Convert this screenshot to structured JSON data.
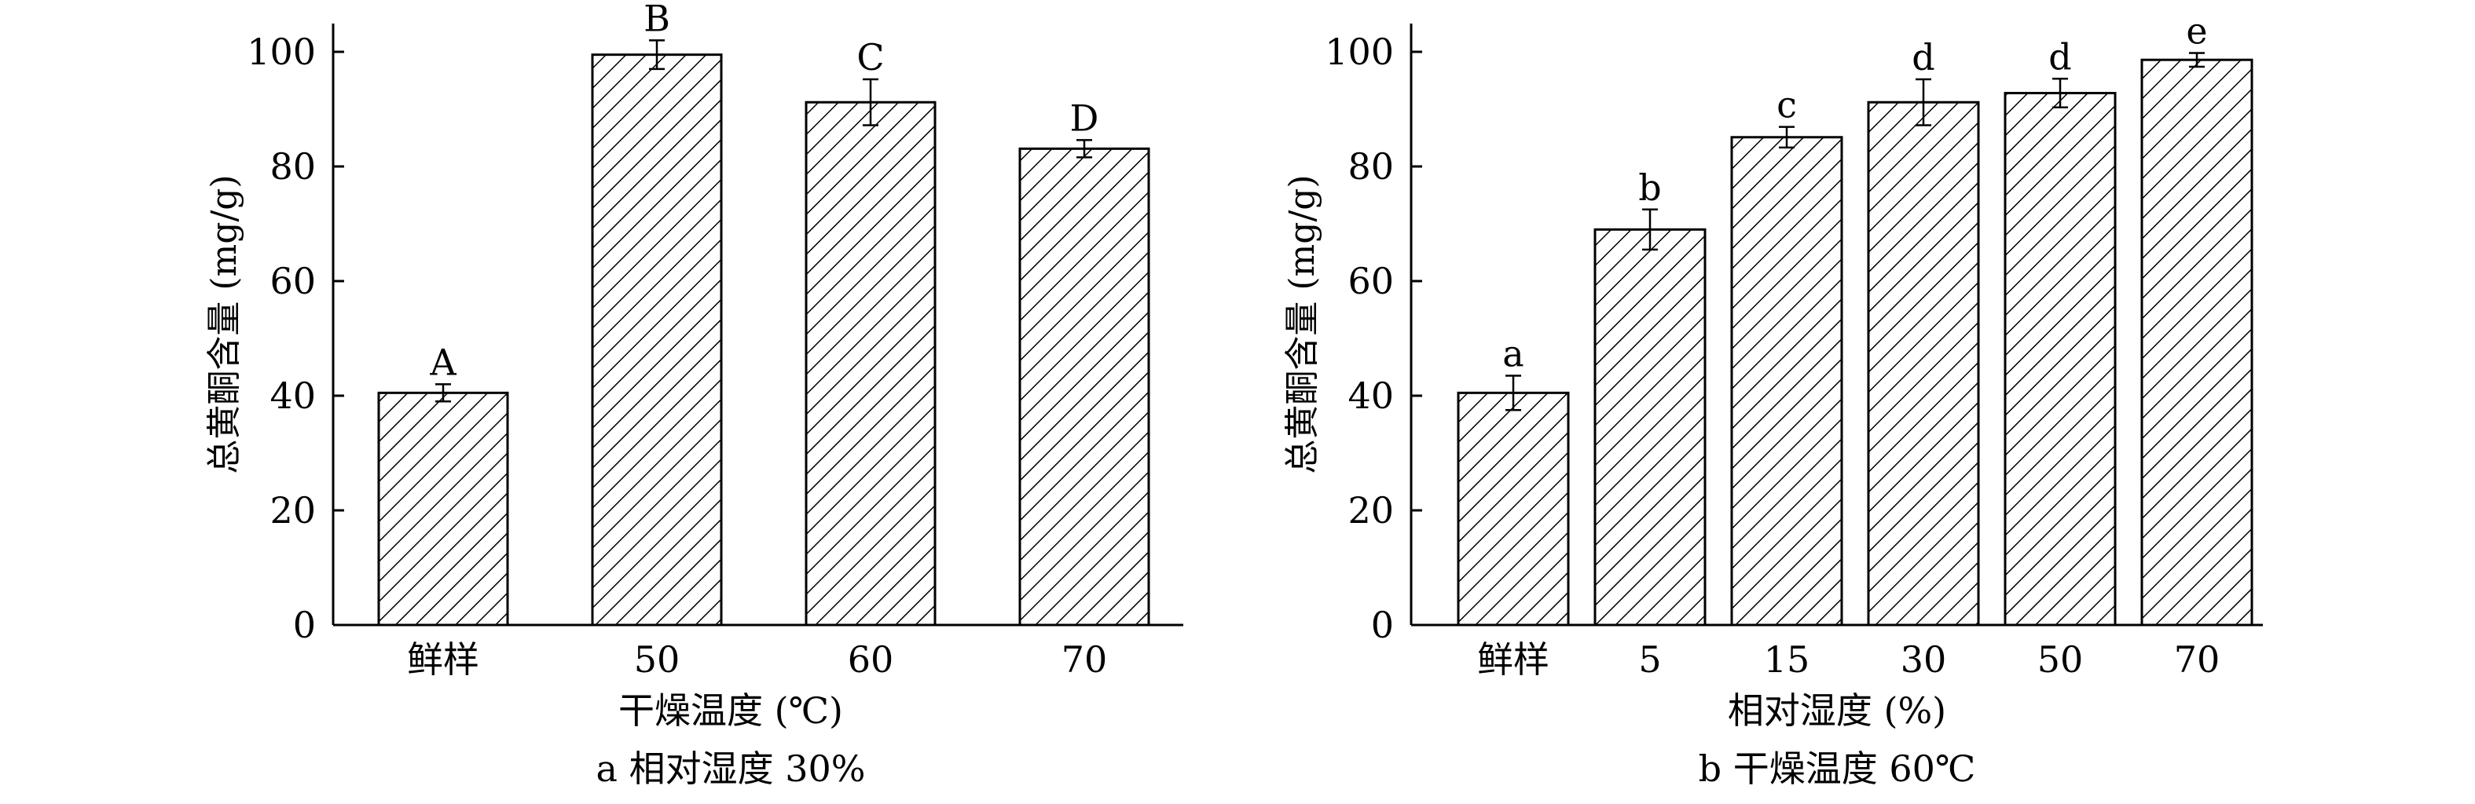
{
  "chart_data": [
    {
      "type": "bar",
      "caption": "a 相对湿度 30%",
      "xlabel": "干燥温度 (℃)",
      "ylabel": "总黄酮含量 (mg/g)",
      "ylim": [
        0,
        100
      ],
      "yticks": [
        "0",
        "20",
        "40",
        "60",
        "80",
        "100"
      ],
      "categories": [
        "鲜样",
        "50",
        "60",
        "70"
      ],
      "values": [
        40.5,
        99.5,
        91.2,
        83.1
      ],
      "errors": [
        1.5,
        2.5,
        4.0,
        1.5
      ],
      "letters": [
        "A",
        "B",
        "C",
        "D"
      ],
      "bar_fill": "diagonal-hatch",
      "grid": false,
      "legend": "none"
    },
    {
      "type": "bar",
      "caption": "b 干燥温度 60℃",
      "xlabel": "相对湿度 (%)",
      "ylabel": "总黄酮含量 (mg/g)",
      "ylim": [
        0,
        100
      ],
      "yticks": [
        "0",
        "20",
        "40",
        "60",
        "80",
        "100"
      ],
      "categories": [
        "鲜样",
        "5",
        "15",
        "30",
        "50",
        "70"
      ],
      "values": [
        40.5,
        69.0,
        85.1,
        91.2,
        92.8,
        98.6
      ],
      "errors": [
        3.0,
        3.5,
        1.8,
        4.0,
        2.5,
        1.2
      ],
      "letters": [
        "a",
        "b",
        "c",
        "d",
        "d",
        "e"
      ],
      "bar_fill": "diagonal-hatch",
      "grid": false,
      "legend": "none"
    }
  ]
}
